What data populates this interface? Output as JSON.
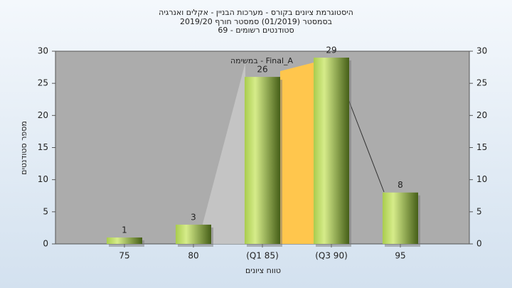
{
  "chart_data": {
    "type": "bar",
    "title": [
      "היסטוגרמת ציונים בקורס - מערכות הבניין - אקלים ואנרגיה",
      "בסמסטר  (01/2019)  סמסטר חורף 2019/20",
      "סטודנטים רשומים - 69"
    ],
    "legend_text": "במשימה - Final_A",
    "x_label": "טווח ציונים",
    "y_label": "מספר סטודנטים",
    "categories": [
      "75",
      "80",
      "(Q1 85)",
      "(Q3 90)",
      "95"
    ],
    "values": [
      1,
      3,
      26,
      29,
      8
    ],
    "ylim": [
      0,
      30
    ],
    "yticks": [
      0,
      5,
      10,
      15,
      20,
      25,
      30
    ],
    "y2lim": [
      0,
      30
    ],
    "y2ticks": [
      0,
      5,
      10,
      15,
      20,
      25,
      30
    ],
    "grid": false
  }
}
